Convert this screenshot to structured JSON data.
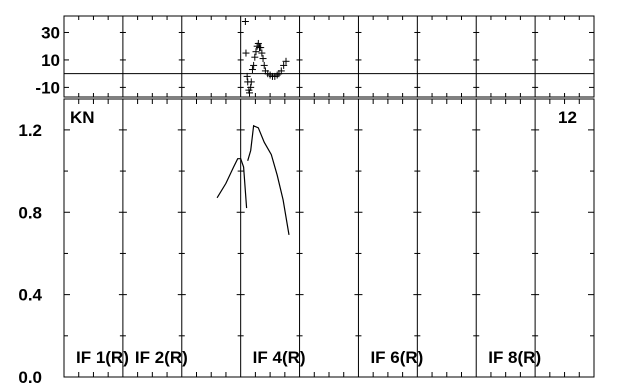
{
  "chart_data": [
    {
      "type": "scatter",
      "panel": "phase",
      "ylim": [
        -17,
        42
      ],
      "yticks": [
        "30",
        "10",
        "-10"
      ],
      "ytick_values": [
        30,
        10,
        -10
      ],
      "zero_line": 0,
      "x_sections": 9,
      "points": [
        [
          3.08,
          38
        ],
        [
          3.09,
          15
        ],
        [
          3.11,
          -2
        ],
        [
          3.12,
          -6
        ],
        [
          3.14,
          -12
        ],
        [
          3.15,
          -14
        ],
        [
          3.17,
          -10
        ],
        [
          3.18,
          -6
        ],
        [
          3.2,
          3
        ],
        [
          3.22,
          6
        ],
        [
          3.24,
          12
        ],
        [
          3.26,
          16
        ],
        [
          3.28,
          20
        ],
        [
          3.3,
          22
        ],
        [
          3.32,
          19
        ],
        [
          3.34,
          19
        ],
        [
          3.36,
          15
        ],
        [
          3.38,
          11
        ],
        [
          3.4,
          6
        ],
        [
          3.42,
          2
        ],
        [
          3.46,
          0
        ],
        [
          3.5,
          -1
        ],
        [
          3.54,
          -2
        ],
        [
          3.58,
          -2
        ],
        [
          3.62,
          -1
        ],
        [
          3.65,
          0
        ],
        [
          3.69,
          2
        ],
        [
          3.73,
          6
        ],
        [
          3.77,
          9
        ]
      ]
    },
    {
      "type": "line",
      "panel": "amplitude",
      "ylim": [
        0.0,
        1.35
      ],
      "yticks": [
        "1.2",
        "0.8",
        "0.4",
        "0.0"
      ],
      "ytick_values": [
        1.2,
        0.8,
        0.4,
        0.0
      ],
      "x_sections": 9,
      "top_left_label": "KN",
      "top_right_label": "12",
      "section_labels": [
        {
          "text": "IF 1(R)",
          "section": 1
        },
        {
          "text": "IF 2(R)",
          "section": 2
        },
        {
          "text": "IF 4(R)",
          "section": 4
        },
        {
          "text": "IF 6(R)",
          "section": 6
        },
        {
          "text": "IF 8(R)",
          "section": 8
        }
      ],
      "series": [
        {
          "x": [
            2.6,
            2.75,
            2.88,
            2.95,
            3.0,
            3.05,
            3.1
          ],
          "y": [
            0.87,
            0.94,
            1.02,
            1.06,
            1.06,
            1.02,
            0.82
          ]
        },
        {
          "x": [
            3.12,
            3.17,
            3.22,
            3.3,
            3.4,
            3.52,
            3.62,
            3.72,
            3.82
          ],
          "y": [
            1.05,
            1.1,
            1.22,
            1.21,
            1.14,
            1.08,
            0.98,
            0.86,
            0.69
          ]
        }
      ]
    }
  ]
}
